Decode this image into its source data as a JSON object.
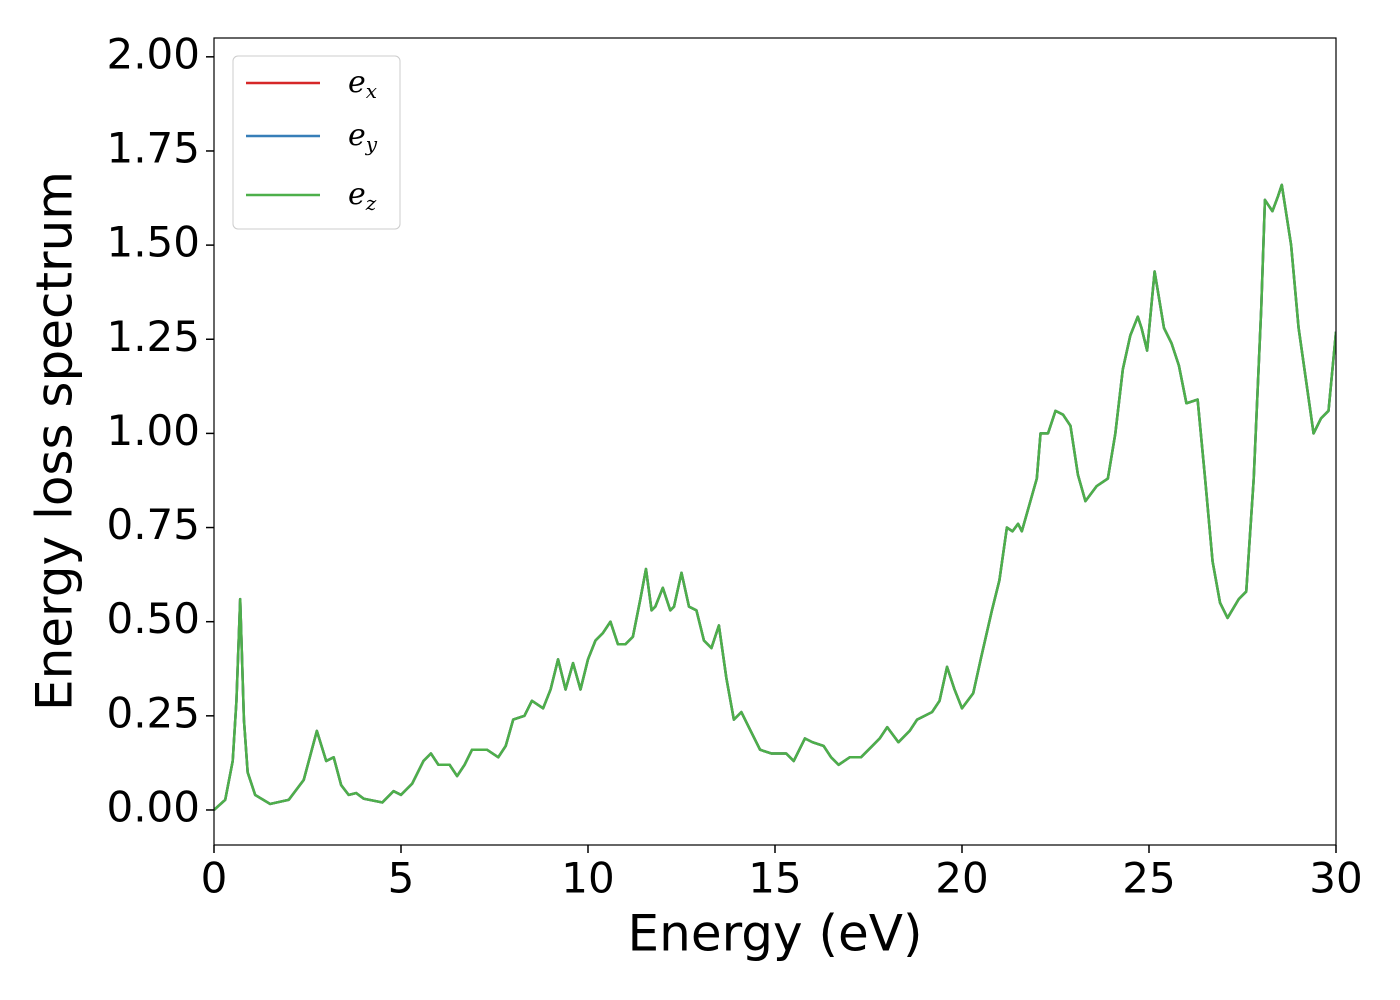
{
  "chart_data": {
    "type": "line",
    "xlabel": "Energy (eV)",
    "ylabel": "Energy loss spectrum",
    "x": [
      0,
      0.3,
      0.5,
      0.6,
      0.7,
      0.8,
      0.9,
      1.1,
      1.5,
      2.0,
      2.4,
      2.75,
      3.0,
      3.2,
      3.4,
      3.6,
      3.8,
      4.0,
      4.5,
      4.8,
      5.0,
      5.3,
      5.6,
      5.8,
      6.0,
      6.3,
      6.5,
      6.7,
      6.9,
      7.3,
      7.6,
      7.8,
      8.0,
      8.3,
      8.5,
      8.8,
      9.0,
      9.2,
      9.4,
      9.6,
      9.8,
      10.0,
      10.2,
      10.4,
      10.6,
      10.8,
      11.0,
      11.2,
      11.4,
      11.55,
      11.7,
      11.8,
      12.0,
      12.2,
      12.3,
      12.5,
      12.7,
      12.9,
      13.1,
      13.3,
      13.5,
      13.7,
      13.9,
      14.1,
      14.3,
      14.6,
      14.9,
      15.1,
      15.3,
      15.5,
      15.8,
      16.0,
      16.3,
      16.5,
      16.7,
      17.0,
      17.3,
      17.6,
      17.8,
      18.0,
      18.3,
      18.6,
      18.8,
      19.2,
      19.4,
      19.6,
      19.8,
      20.0,
      20.3,
      20.5,
      20.8,
      21.0,
      21.2,
      21.35,
      21.5,
      21.6,
      21.8,
      22.0,
      22.1,
      22.3,
      22.5,
      22.7,
      22.9,
      23.1,
      23.3,
      23.6,
      23.9,
      24.1,
      24.3,
      24.5,
      24.7,
      24.8,
      24.95,
      25.15,
      25.4,
      25.6,
      25.8,
      26.0,
      26.3,
      26.5,
      26.7,
      26.9,
      27.1,
      27.4,
      27.6,
      27.8,
      28.0,
      28.1,
      28.3,
      28.45,
      28.55,
      28.8,
      29.0,
      29.2,
      29.4,
      29.6,
      29.8,
      30.0
    ],
    "series": [
      {
        "name": "ex",
        "color": "#d62728",
        "values": [
          0,
          0.027,
          0.13,
          0.29,
          0.56,
          0.24,
          0.1,
          0.04,
          0.016,
          0.027,
          0.08,
          0.21,
          0.13,
          0.14,
          0.066,
          0.04,
          0.045,
          0.03,
          0.02,
          0.05,
          0.04,
          0.07,
          0.13,
          0.15,
          0.12,
          0.12,
          0.09,
          0.12,
          0.16,
          0.16,
          0.14,
          0.17,
          0.24,
          0.25,
          0.29,
          0.27,
          0.32,
          0.4,
          0.32,
          0.39,
          0.32,
          0.4,
          0.45,
          0.47,
          0.5,
          0.44,
          0.44,
          0.46,
          0.56,
          0.64,
          0.53,
          0.54,
          0.59,
          0.53,
          0.54,
          0.63,
          0.54,
          0.53,
          0.45,
          0.43,
          0.49,
          0.35,
          0.24,
          0.26,
          0.22,
          0.16,
          0.15,
          0.15,
          0.15,
          0.13,
          0.19,
          0.18,
          0.17,
          0.14,
          0.12,
          0.14,
          0.14,
          0.17,
          0.19,
          0.22,
          0.18,
          0.21,
          0.24,
          0.26,
          0.29,
          0.38,
          0.32,
          0.27,
          0.31,
          0.4,
          0.53,
          0.61,
          0.75,
          0.74,
          0.76,
          0.74,
          0.81,
          0.88,
          1.0,
          1.0,
          1.06,
          1.05,
          1.02,
          0.89,
          0.82,
          0.86,
          0.88,
          1.0,
          1.17,
          1.26,
          1.31,
          1.28,
          1.22,
          1.43,
          1.28,
          1.24,
          1.18,
          1.08,
          1.09,
          0.88,
          0.66,
          0.55,
          0.51,
          0.56,
          0.58,
          0.88,
          1.33,
          1.62,
          1.59,
          1.63,
          1.66,
          1.5,
          1.28,
          1.14,
          1.0,
          1.04,
          1.06,
          1.27
        ]
      },
      {
        "name": "ey",
        "color": "#377eb8",
        "values": [
          0,
          0.027,
          0.13,
          0.29,
          0.56,
          0.24,
          0.1,
          0.04,
          0.016,
          0.027,
          0.08,
          0.21,
          0.13,
          0.14,
          0.066,
          0.04,
          0.045,
          0.03,
          0.02,
          0.05,
          0.04,
          0.07,
          0.13,
          0.15,
          0.12,
          0.12,
          0.09,
          0.12,
          0.16,
          0.16,
          0.14,
          0.17,
          0.24,
          0.25,
          0.29,
          0.27,
          0.32,
          0.4,
          0.32,
          0.39,
          0.32,
          0.4,
          0.45,
          0.47,
          0.5,
          0.44,
          0.44,
          0.46,
          0.56,
          0.64,
          0.53,
          0.54,
          0.59,
          0.53,
          0.54,
          0.63,
          0.54,
          0.53,
          0.45,
          0.43,
          0.49,
          0.35,
          0.24,
          0.26,
          0.22,
          0.16,
          0.15,
          0.15,
          0.15,
          0.13,
          0.19,
          0.18,
          0.17,
          0.14,
          0.12,
          0.14,
          0.14,
          0.17,
          0.19,
          0.22,
          0.18,
          0.21,
          0.24,
          0.26,
          0.29,
          0.38,
          0.32,
          0.27,
          0.31,
          0.4,
          0.53,
          0.61,
          0.75,
          0.74,
          0.76,
          0.74,
          0.81,
          0.88,
          1.0,
          1.0,
          1.06,
          1.05,
          1.02,
          0.89,
          0.82,
          0.86,
          0.88,
          1.0,
          1.17,
          1.26,
          1.31,
          1.28,
          1.22,
          1.43,
          1.28,
          1.24,
          1.18,
          1.08,
          1.09,
          0.88,
          0.66,
          0.55,
          0.51,
          0.56,
          0.58,
          0.88,
          1.33,
          1.62,
          1.59,
          1.63,
          1.66,
          1.5,
          1.28,
          1.14,
          1.0,
          1.04,
          1.06,
          1.27
        ]
      },
      {
        "name": "ez",
        "color": "#4daf4a",
        "values": [
          0,
          0.027,
          0.13,
          0.29,
          0.56,
          0.24,
          0.1,
          0.04,
          0.016,
          0.027,
          0.08,
          0.21,
          0.13,
          0.14,
          0.066,
          0.04,
          0.045,
          0.03,
          0.02,
          0.05,
          0.04,
          0.07,
          0.13,
          0.15,
          0.12,
          0.12,
          0.09,
          0.12,
          0.16,
          0.16,
          0.14,
          0.17,
          0.24,
          0.25,
          0.29,
          0.27,
          0.32,
          0.4,
          0.32,
          0.39,
          0.32,
          0.4,
          0.45,
          0.47,
          0.5,
          0.44,
          0.44,
          0.46,
          0.56,
          0.64,
          0.53,
          0.54,
          0.59,
          0.53,
          0.54,
          0.63,
          0.54,
          0.53,
          0.45,
          0.43,
          0.49,
          0.35,
          0.24,
          0.26,
          0.22,
          0.16,
          0.15,
          0.15,
          0.15,
          0.13,
          0.19,
          0.18,
          0.17,
          0.14,
          0.12,
          0.14,
          0.14,
          0.17,
          0.19,
          0.22,
          0.18,
          0.21,
          0.24,
          0.26,
          0.29,
          0.38,
          0.32,
          0.27,
          0.31,
          0.4,
          0.53,
          0.61,
          0.75,
          0.74,
          0.76,
          0.74,
          0.81,
          0.88,
          1.0,
          1.0,
          1.06,
          1.05,
          1.02,
          0.89,
          0.82,
          0.86,
          0.88,
          1.0,
          1.17,
          1.26,
          1.31,
          1.28,
          1.22,
          1.43,
          1.28,
          1.24,
          1.18,
          1.08,
          1.09,
          0.88,
          0.66,
          0.55,
          0.51,
          0.56,
          0.58,
          0.88,
          1.33,
          1.62,
          1.59,
          1.63,
          1.66,
          1.5,
          1.28,
          1.14,
          1.0,
          1.04,
          1.06,
          1.27
        ]
      }
    ],
    "xlim": [
      0,
      30
    ],
    "xticks": [
      0,
      5,
      10,
      15,
      20,
      25,
      30
    ],
    "ylim": [
      -0.093,
      2.05
    ],
    "yticks": [
      {
        "value": 0,
        "label": "0.00"
      },
      {
        "value": 0.25,
        "label": "0.25"
      },
      {
        "value": 0.5,
        "label": "0.50"
      },
      {
        "value": 0.75,
        "label": "0.75"
      },
      {
        "value": 1,
        "label": "1.00"
      },
      {
        "value": 1.25,
        "label": "1.25"
      },
      {
        "value": 1.5,
        "label": "1.50"
      },
      {
        "value": 1.75,
        "label": "1.75"
      },
      {
        "value": 2,
        "label": "2.00"
      }
    ],
    "legend": "upper left",
    "grid": false
  }
}
